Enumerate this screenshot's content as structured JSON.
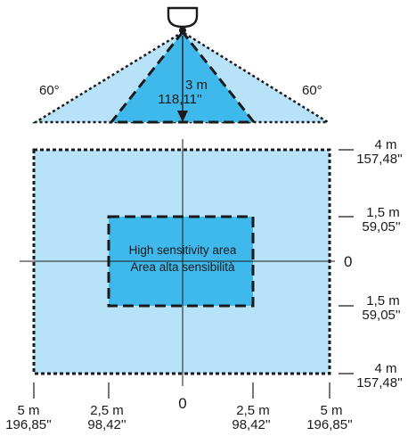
{
  "colors": {
    "outer_fill": "#b8e2f8",
    "inner_fill": "#3fb9ec",
    "line": "#1a1a1a"
  },
  "icons": [
    "ceiling-sensor-icon"
  ],
  "side_view": {
    "angle_left": "60°",
    "angle_right": "60°",
    "height_m": "3 m",
    "height_in": "118,11''"
  },
  "area": {
    "label_en": "High sensitivity area",
    "label_it": "Area alta sensibilità"
  },
  "right_scale": {
    "top_m": "4 m",
    "top_in": "157,48''",
    "upper_m": "1,5 m",
    "upper_in": "59,05''",
    "zero": "0",
    "lower_m": "1,5 m",
    "lower_in": "59,05''",
    "bottom_m": "4 m",
    "bottom_in": "157,48''"
  },
  "bottom_scale": {
    "far_left_m": "5 m",
    "far_left_in": "196,85''",
    "left_m": "2,5 m",
    "left_in": "98,42''",
    "zero": "0",
    "right_m": "2,5 m",
    "right_in": "98,42''",
    "far_right_m": "5 m",
    "far_right_in": "196,85''"
  }
}
